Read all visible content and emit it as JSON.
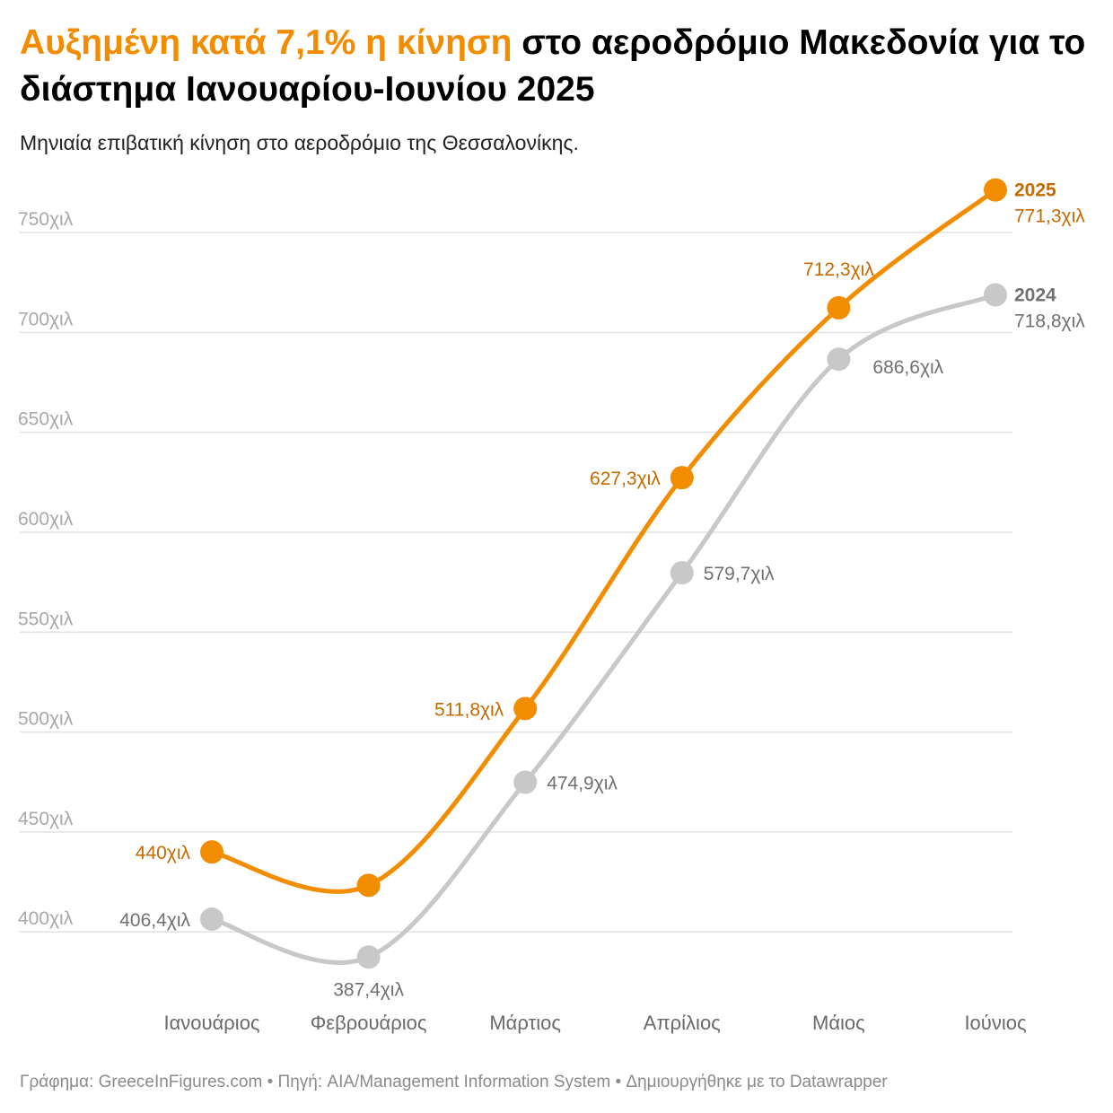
{
  "header": {
    "title_highlight": "Αυξημένη κατά 7,1% η κίνηση",
    "title_rest": " στο αεροδρόμιο Μακεδονία για το διάστημα Ιανουαρίου-Ιουνίου 2025",
    "subtitle": "Μηνιαία επιβατική κίνηση στο αεροδρόμιο της Θεσσαλονίκης."
  },
  "footer": {
    "text": "Γράφημα: GreeceInFigures.com • Πηγή: AIA/Management Information System • Δημιουργήθηκε με το Datawrapper"
  },
  "colors": {
    "series_2025": "#f28c00",
    "series_2025_label": "#c46a00",
    "series_2024": "#c8c8c8",
    "series_2024_label": "#707070",
    "grid": "#e2e2e2",
    "y_tick": "#a8a8a8",
    "x_tick": "#6a6a6a"
  },
  "chart_data": {
    "type": "line",
    "categories": [
      "Ιανουάριος",
      "Φεβρουάριος",
      "Μάρτιος",
      "Απρίλιος",
      "Μάιος",
      "Ιούνιος"
    ],
    "ylim": [
      375,
      785
    ],
    "yticks": [
      400,
      450,
      500,
      550,
      600,
      650,
      700,
      750
    ],
    "ytick_labels": [
      "400χιλ",
      "450χιλ",
      "500χιλ",
      "550χιλ",
      "600χιλ",
      "650χιλ",
      "700χιλ",
      "750χιλ"
    ],
    "grid": true,
    "series": [
      {
        "name": "2024",
        "values": [
          406.4,
          387.4,
          474.9,
          579.7,
          686.6,
          718.8
        ],
        "labels": [
          "406,4χιλ",
          "387,4χιλ",
          "474,9χιλ",
          "579,7χιλ",
          "686,6χιλ",
          "718,8χιλ"
        ]
      },
      {
        "name": "2025",
        "values": [
          440,
          423.3,
          511.8,
          627.3,
          712.3,
          771.3
        ],
        "labels": [
          "440χιλ",
          "",
          "511,8χιλ",
          "627,3χιλ",
          "712,3χιλ",
          "771,3χιλ"
        ]
      }
    ]
  }
}
